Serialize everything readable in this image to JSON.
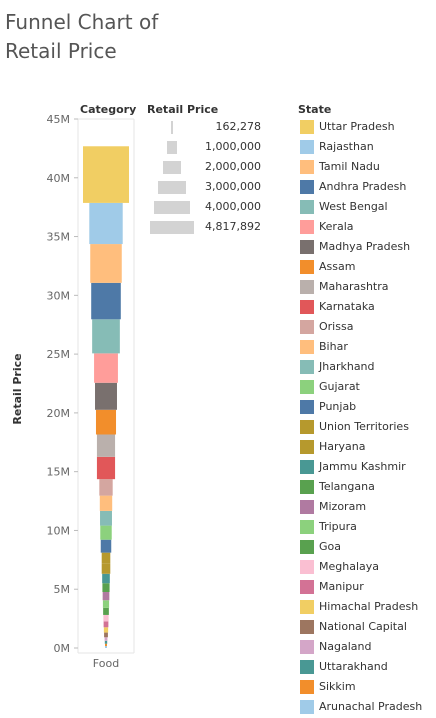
{
  "title": "Funnel Chart of Retail Price",
  "headers": {
    "category": "Category",
    "size": "Retail Price",
    "color": "State"
  },
  "chart_data": {
    "type": "bar",
    "ylabel": "Retail Price",
    "ylim": [
      0,
      45000000
    ],
    "yticks": [
      0,
      5000000,
      10000000,
      15000000,
      20000000,
      25000000,
      30000000,
      35000000,
      40000000,
      45000000
    ],
    "ytick_labels": [
      "0M",
      "5M",
      "10M",
      "15M",
      "20M",
      "25M",
      "30M",
      "35M",
      "40M",
      "45M"
    ],
    "categories": [
      "Food"
    ],
    "size_legend": {
      "title": "Retail Price",
      "values": [
        162278,
        1000000,
        2000000,
        3000000,
        4000000,
        4817892
      ],
      "labels": [
        "162,278",
        "1,000,000",
        "2,000,000",
        "3,000,000",
        "4,000,000",
        "4,817,892"
      ]
    },
    "series": [
      {
        "name": "Uttar Pradesh",
        "value": 4817892,
        "color": "#f1ce63"
      },
      {
        "name": "Rajasthan",
        "value": 3500000,
        "color": "#a0cbe8"
      },
      {
        "name": "Tamil Nadu",
        "value": 3300000,
        "color": "#ffbe7d"
      },
      {
        "name": "Andhra Pradesh",
        "value": 3100000,
        "color": "#4e79a7"
      },
      {
        "name": "West Bengal",
        "value": 2900000,
        "color": "#86bcb6"
      },
      {
        "name": "Kerala",
        "value": 2500000,
        "color": "#ff9d9a"
      },
      {
        "name": "Madhya Pradesh",
        "value": 2300000,
        "color": "#79706e"
      },
      {
        "name": "Assam",
        "value": 2100000,
        "color": "#f28e2b"
      },
      {
        "name": "Maharashtra",
        "value": 1900000,
        "color": "#bab0ac"
      },
      {
        "name": "Karnataka",
        "value": 1900000,
        "color": "#e15759"
      },
      {
        "name": "Orissa",
        "value": 1400000,
        "color": "#d4a6a0"
      },
      {
        "name": "Bihar",
        "value": 1300000,
        "color": "#ffbe7d"
      },
      {
        "name": "Jharkhand",
        "value": 1250000,
        "color": "#86bcb6"
      },
      {
        "name": "Gujarat",
        "value": 1200000,
        "color": "#8cd17d"
      },
      {
        "name": "Punjab",
        "value": 1100000,
        "color": "#4e79a7"
      },
      {
        "name": "Union Territories",
        "value": 900000,
        "color": "#b6992d"
      },
      {
        "name": "Haryana",
        "value": 900000,
        "color": "#b6992d"
      },
      {
        "name": "Jammu Kashmir",
        "value": 800000,
        "color": "#499894"
      },
      {
        "name": "Telangana",
        "value": 750000,
        "color": "#59a14f"
      },
      {
        "name": "Mizoram",
        "value": 700000,
        "color": "#b07aa1"
      },
      {
        "name": "Tripura",
        "value": 650000,
        "color": "#8cd17d"
      },
      {
        "name": "Goa",
        "value": 600000,
        "color": "#59a14f"
      },
      {
        "name": "Meghalaya",
        "value": 550000,
        "color": "#fabfd2"
      },
      {
        "name": "Manipur",
        "value": 500000,
        "color": "#d37295"
      },
      {
        "name": "Himachal Pradesh",
        "value": 450000,
        "color": "#f1ce63"
      },
      {
        "name": "National Capital",
        "value": 400000,
        "color": "#9d7660"
      },
      {
        "name": "Nagaland",
        "value": 300000,
        "color": "#d4a6c8"
      },
      {
        "name": "Uttarakhand",
        "value": 250000,
        "color": "#499894"
      },
      {
        "name": "Sikkim",
        "value": 200000,
        "color": "#f28e2b"
      },
      {
        "name": "Arunachal Pradesh",
        "value": 162278,
        "color": "#a0cbe8"
      }
    ]
  }
}
